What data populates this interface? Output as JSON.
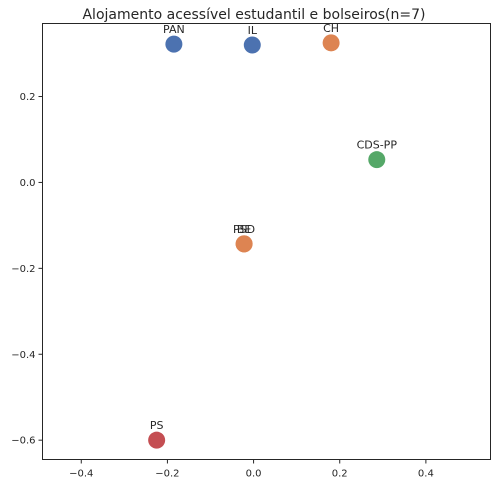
{
  "chart_data": {
    "type": "scatter",
    "title": "Alojamento acessível estudantil e bolseiros(n=7)",
    "xlabel": "",
    "ylabel": "",
    "xlim": [
      -0.49,
      0.55
    ],
    "ylim": [
      -0.645,
      0.37
    ],
    "x_ticks": [
      -0.4,
      -0.2,
      0.0,
      0.2,
      0.4
    ],
    "x_tick_labels": [
      "−0.4",
      "−0.2",
      "0.0",
      "0.2",
      "0.4"
    ],
    "y_ticks": [
      -0.6,
      -0.4,
      -0.2,
      0.0,
      0.2
    ],
    "y_tick_labels": [
      "−0.6",
      "−0.4",
      "−0.2",
      "0.0",
      "0.2"
    ],
    "grid": false,
    "legend": "none",
    "points": [
      {
        "label": "PAN",
        "x": -0.185,
        "y": 0.322,
        "color": "#4c72b0"
      },
      {
        "label": "IL",
        "x": -0.003,
        "y": 0.32,
        "color": "#4c72b0"
      },
      {
        "label": "CH",
        "x": 0.18,
        "y": 0.325,
        "color": "#dd8452"
      },
      {
        "label": "CDS-PP",
        "x": 0.286,
        "y": 0.053,
        "color": "#55a868"
      },
      {
        "label": "BE",
        "x": -0.022,
        "y": -0.143,
        "color": "#dd8452"
      },
      {
        "label": "PSD",
        "x": -0.022,
        "y": -0.143,
        "color": "#dd8452"
      },
      {
        "label": "PS",
        "x": -0.225,
        "y": -0.6,
        "color": "#c44e52"
      }
    ]
  }
}
